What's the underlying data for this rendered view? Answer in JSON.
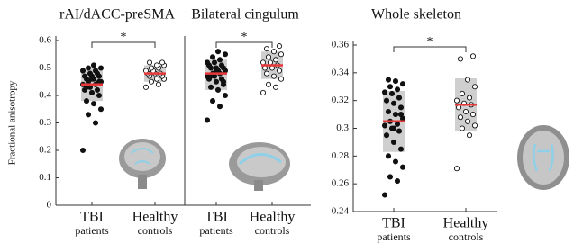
{
  "chart_data": [
    {
      "type": "strip",
      "title": "rAI/dACC-preSMA",
      "ylabel": "Fractional anisotropy",
      "categories": [
        [
          "TBI",
          "patients"
        ],
        [
          "Healthy",
          "controls"
        ]
      ],
      "ylim": [
        0,
        0.6
      ],
      "yticks": [
        0,
        0.1,
        0.2,
        0.3,
        0.4,
        0.5,
        0.6
      ],
      "annotation": "*",
      "mean_color": "#e8393a",
      "box_color": "#cfcfcf",
      "series": [
        {
          "marker": "filled",
          "mean": 0.44,
          "box": [
            0.38,
            0.5
          ],
          "values": [
            0.2,
            0.3,
            0.33,
            0.35,
            0.37,
            0.38,
            0.4,
            0.41,
            0.42,
            0.42,
            0.43,
            0.44,
            0.44,
            0.45,
            0.45,
            0.46,
            0.46,
            0.47,
            0.47,
            0.47,
            0.48,
            0.48,
            0.49,
            0.49,
            0.5,
            0.5,
            0.51,
            0.43,
            0.45,
            0.46
          ]
        },
        {
          "marker": "open",
          "mean": 0.48,
          "box": [
            0.45,
            0.51
          ],
          "values": [
            0.43,
            0.44,
            0.45,
            0.46,
            0.46,
            0.47,
            0.47,
            0.48,
            0.48,
            0.48,
            0.49,
            0.49,
            0.5,
            0.5,
            0.51,
            0.51,
            0.52,
            0.52
          ]
        }
      ]
    },
    {
      "type": "strip",
      "title": "Bilateral cingulum",
      "categories": [
        [
          "TBI",
          "patients"
        ],
        [
          "Healthy",
          "controls"
        ]
      ],
      "ylim": [
        0,
        0.6
      ],
      "annotation": "*",
      "mean_color": "#e8393a",
      "box_color": "#cfcfcf",
      "series": [
        {
          "marker": "filled",
          "mean": 0.48,
          "box": [
            0.42,
            0.53
          ],
          "values": [
            0.31,
            0.36,
            0.38,
            0.4,
            0.42,
            0.43,
            0.44,
            0.45,
            0.46,
            0.46,
            0.47,
            0.47,
            0.48,
            0.48,
            0.49,
            0.49,
            0.5,
            0.5,
            0.5,
            0.51,
            0.51,
            0.52,
            0.52,
            0.53,
            0.54,
            0.55,
            0.56,
            0.47,
            0.45,
            0.49
          ]
        },
        {
          "marker": "open",
          "mean": 0.51,
          "box": [
            0.46,
            0.56
          ],
          "values": [
            0.41,
            0.43,
            0.44,
            0.46,
            0.47,
            0.48,
            0.49,
            0.5,
            0.5,
            0.51,
            0.52,
            0.52,
            0.53,
            0.54,
            0.55,
            0.56,
            0.57,
            0.58
          ]
        }
      ]
    },
    {
      "type": "strip",
      "title": "Whole skeleton",
      "categories": [
        [
          "TBI",
          "patients"
        ],
        [
          "Healthy",
          "controls"
        ]
      ],
      "ylim": [
        0.24,
        0.36
      ],
      "yticks": [
        0.24,
        0.26,
        0.28,
        0.3,
        0.32,
        0.34,
        0.36
      ],
      "annotation": "*",
      "mean_color": "#e8393a",
      "box_color": "#cfcfcf",
      "series": [
        {
          "marker": "filled",
          "mean": 0.305,
          "box": [
            0.283,
            0.327
          ],
          "values": [
            0.252,
            0.262,
            0.265,
            0.272,
            0.276,
            0.28,
            0.285,
            0.29,
            0.295,
            0.298,
            0.3,
            0.302,
            0.303,
            0.305,
            0.307,
            0.31,
            0.312,
            0.315,
            0.318,
            0.32,
            0.322,
            0.325,
            0.326,
            0.328,
            0.33,
            0.332,
            0.334,
            0.335,
            0.31,
            0.3
          ]
        },
        {
          "marker": "open",
          "mean": 0.317,
          "box": [
            0.298,
            0.336
          ],
          "values": [
            0.271,
            0.295,
            0.3,
            0.302,
            0.305,
            0.308,
            0.31,
            0.312,
            0.315,
            0.317,
            0.318,
            0.32,
            0.322,
            0.325,
            0.33,
            0.335,
            0.35,
            0.352
          ]
        }
      ]
    }
  ]
}
